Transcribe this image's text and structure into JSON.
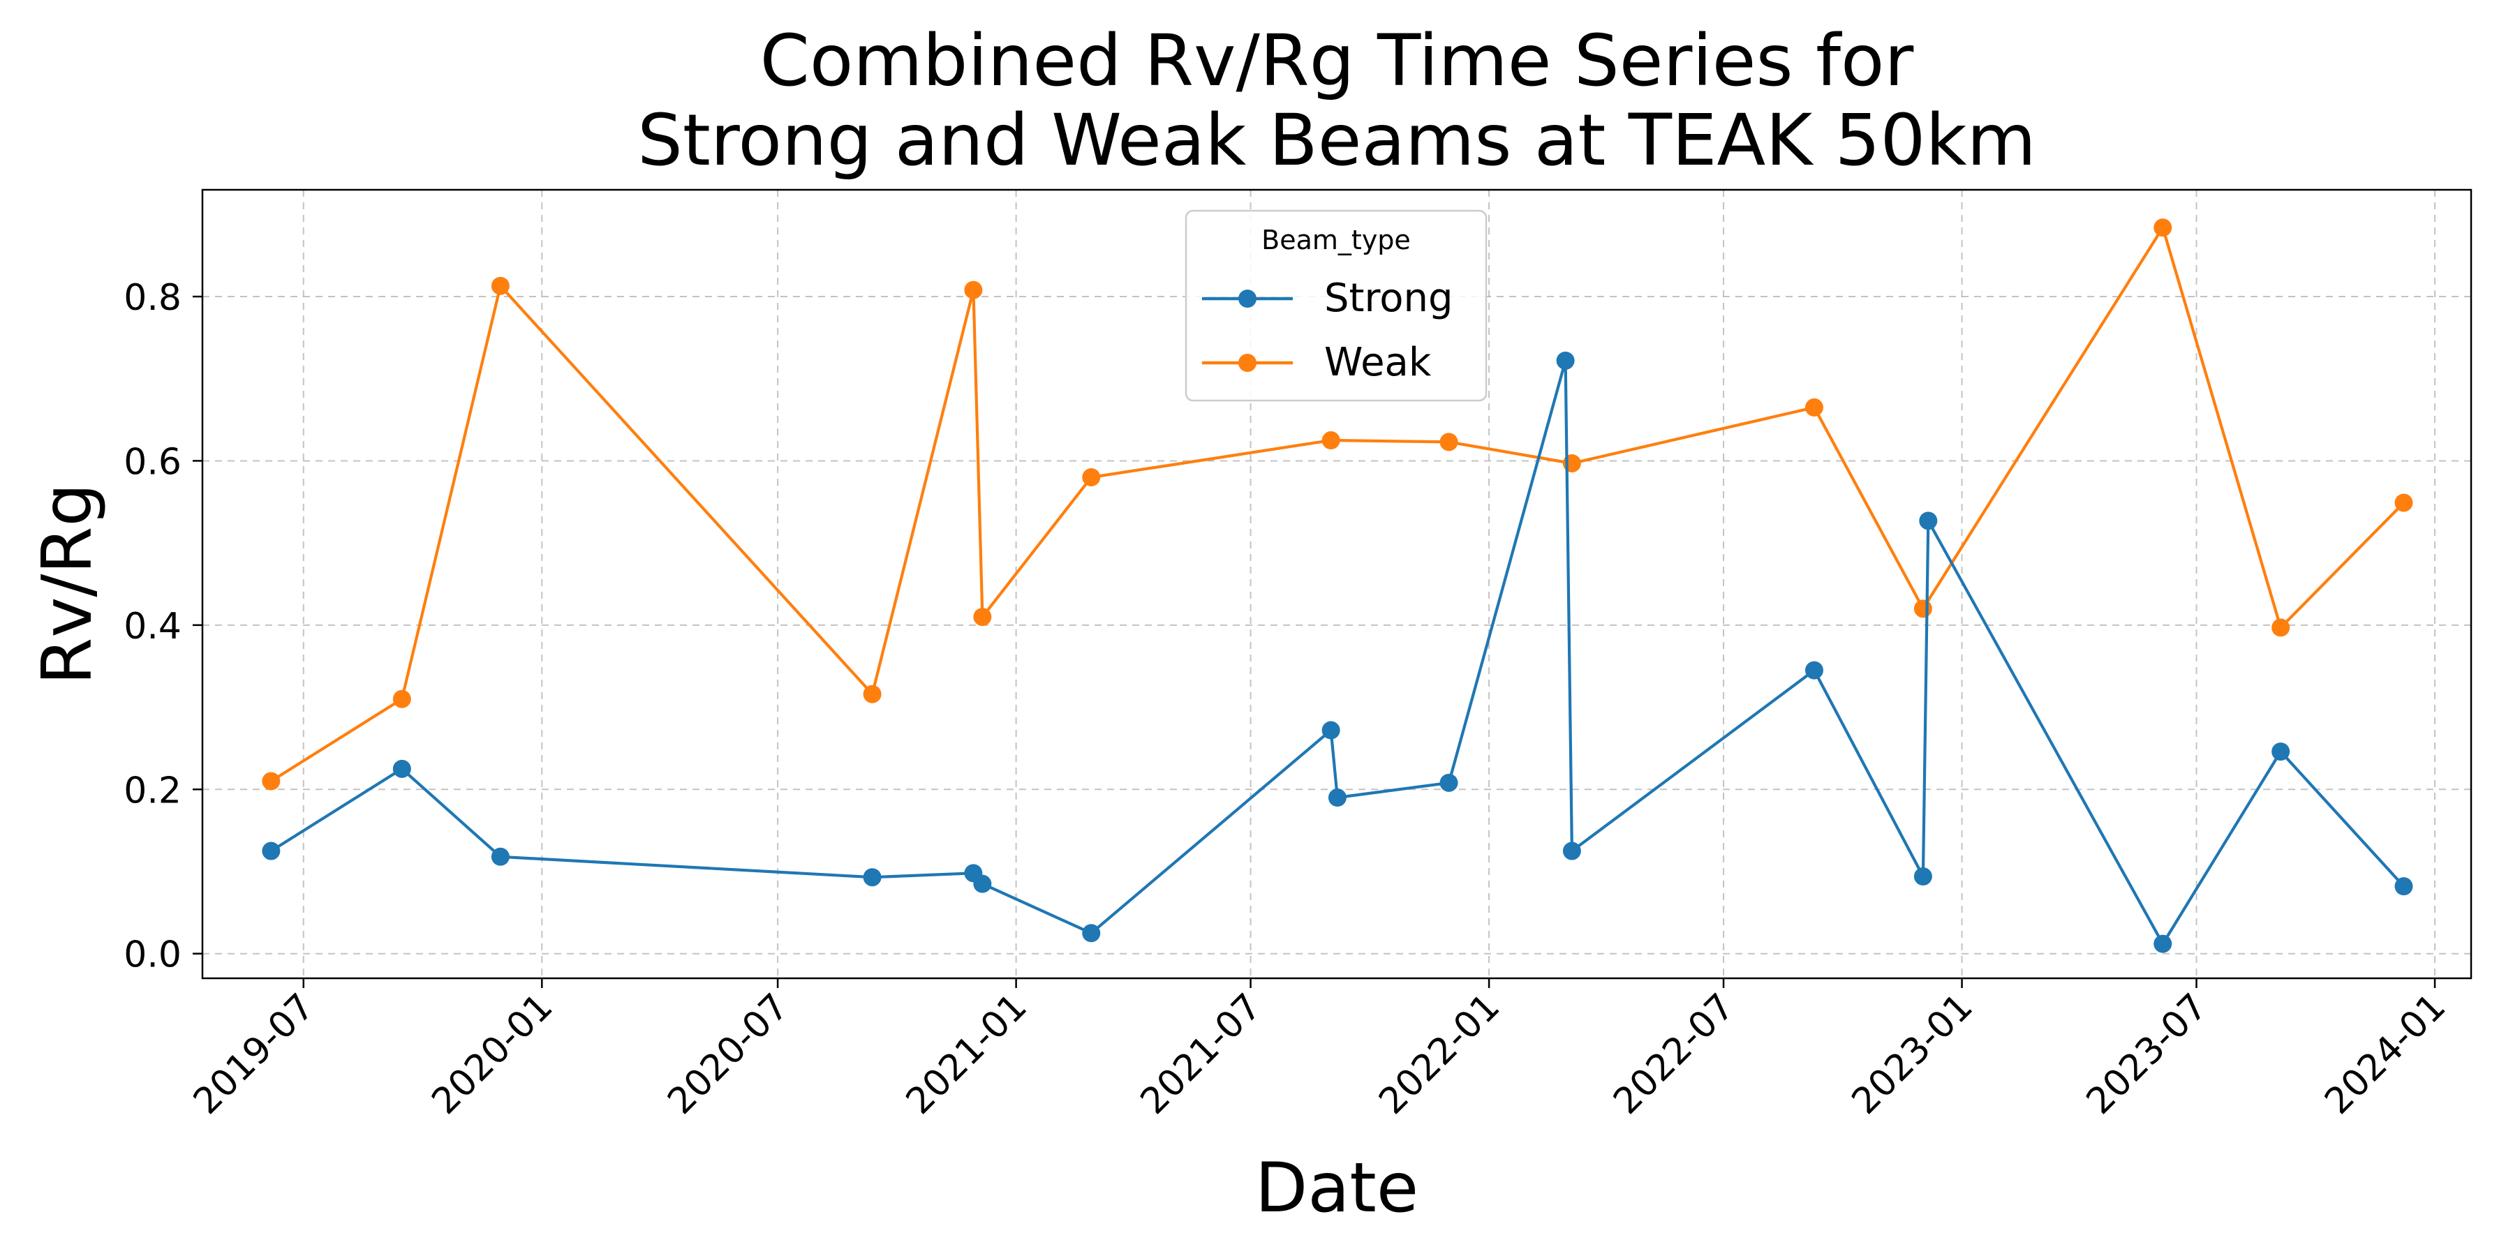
{
  "chart_data": {
    "type": "line",
    "title_lines": [
      "Combined Rv/Rg Time Series for",
      "Strong and Weak Beams at TEAK 50km"
    ],
    "xlabel": "Date",
    "ylabel": "Rv/Rg",
    "ylim": [
      -0.03,
      0.93
    ],
    "xlim": [
      "2019-04-14",
      "2024-01-29"
    ],
    "grid": true,
    "legend": {
      "title": "Beam_type",
      "position": "upper-center"
    },
    "x_ticks": [
      {
        "date": "2019-07-01",
        "label": "2019-07"
      },
      {
        "date": "2020-01-01",
        "label": "2020-01"
      },
      {
        "date": "2020-07-01",
        "label": "2020-07"
      },
      {
        "date": "2021-01-01",
        "label": "2021-01"
      },
      {
        "date": "2021-07-01",
        "label": "2021-07"
      },
      {
        "date": "2022-01-01",
        "label": "2022-01"
      },
      {
        "date": "2022-07-01",
        "label": "2022-07"
      },
      {
        "date": "2023-01-01",
        "label": "2023-01"
      },
      {
        "date": "2023-07-01",
        "label": "2023-07"
      },
      {
        "date": "2024-01-01",
        "label": "2024-01"
      }
    ],
    "y_ticks": [
      {
        "value": 0.0,
        "label": "0.0"
      },
      {
        "value": 0.2,
        "label": "0.2"
      },
      {
        "value": 0.4,
        "label": "0.4"
      },
      {
        "value": 0.6,
        "label": "0.6"
      },
      {
        "value": 0.8,
        "label": "0.8"
      }
    ],
    "series": [
      {
        "name": "Strong",
        "color": "#1f77b4",
        "x": [
          "2019-06-06",
          "2019-09-15",
          "2019-11-30",
          "2020-09-12",
          "2020-11-29",
          "2020-12-06",
          "2021-02-28",
          "2021-09-01",
          "2021-09-06",
          "2021-12-01",
          "2022-03-01",
          "2022-03-06",
          "2022-09-09",
          "2022-12-02",
          "2022-12-06",
          "2023-06-05",
          "2023-09-04",
          "2023-12-08"
        ],
        "values": [
          0.125,
          0.225,
          0.118,
          0.093,
          0.098,
          0.085,
          0.025,
          0.272,
          0.19,
          0.208,
          0.722,
          0.125,
          0.345,
          0.094,
          0.527,
          0.012,
          0.246,
          0.082
        ]
      },
      {
        "name": "Weak",
        "color": "#ff7f0e",
        "x": [
          "2019-06-06",
          "2019-09-15",
          "2019-11-30",
          "2020-09-12",
          "2020-11-29",
          "2020-12-06",
          "2021-02-28",
          "2021-09-01",
          "2021-12-01",
          "2022-03-06",
          "2022-09-09",
          "2022-12-02",
          "2023-06-05",
          "2023-09-04",
          "2023-12-08"
        ],
        "values": [
          0.21,
          0.31,
          0.813,
          0.316,
          0.808,
          0.41,
          0.58,
          0.625,
          0.623,
          0.597,
          0.665,
          0.42,
          0.884,
          0.397,
          0.549
        ]
      }
    ]
  }
}
